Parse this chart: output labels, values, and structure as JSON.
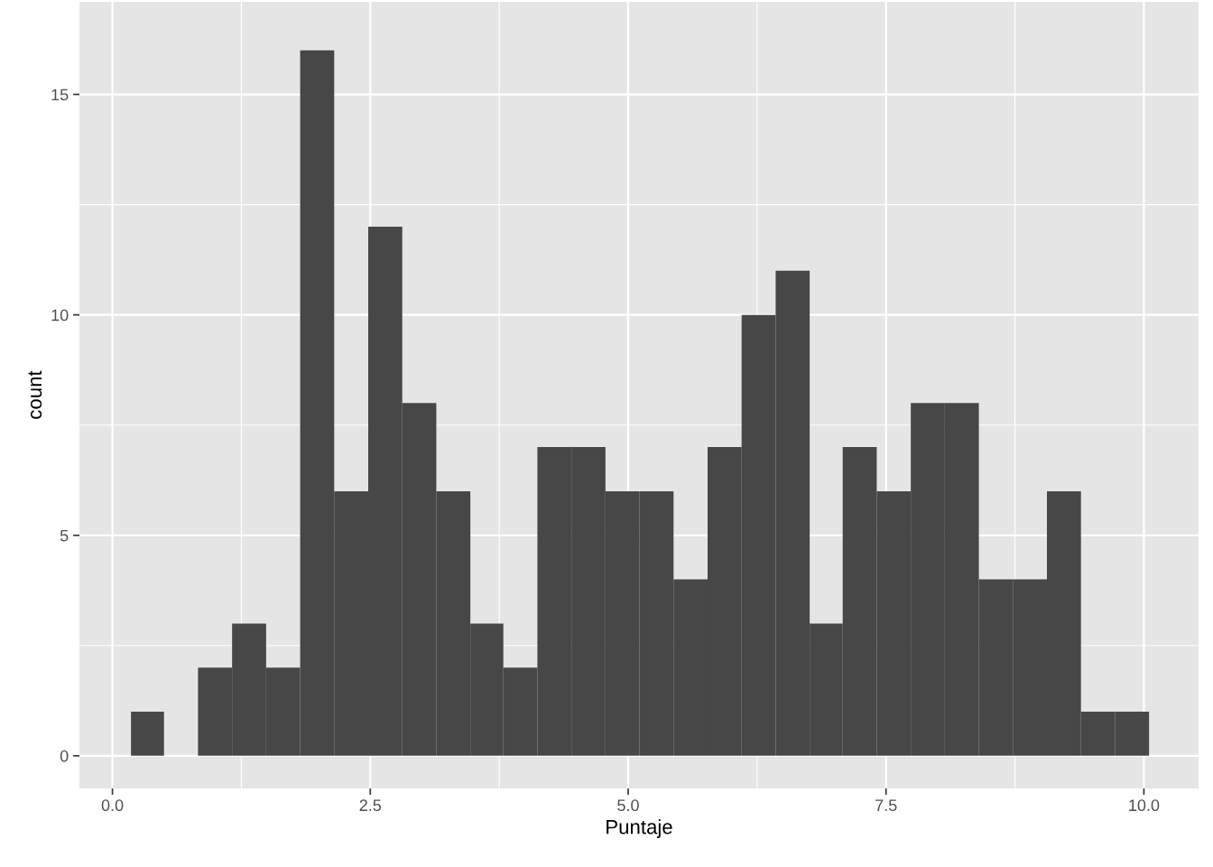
{
  "chart_data": {
    "type": "histogram",
    "xlabel": "Puntaje",
    "ylabel": "count",
    "color": "#474747",
    "bins": [
      0.18,
      0.5,
      0.83,
      1.16,
      1.49,
      1.82,
      2.15,
      2.48,
      2.81,
      3.14,
      3.47,
      3.79,
      4.12,
      4.45,
      4.78,
      5.11,
      5.44,
      5.77,
      6.1,
      6.43,
      6.76,
      7.08,
      7.41,
      7.74,
      8.07,
      8.4,
      8.73,
      9.06,
      9.39,
      9.72,
      10.05
    ],
    "values": [
      1,
      0,
      2,
      3,
      2,
      16,
      6,
      12,
      8,
      6,
      3,
      2,
      7,
      7,
      6,
      6,
      4,
      7,
      10,
      11,
      3,
      7,
      6,
      8,
      8,
      4,
      4,
      6,
      1,
      1
    ],
    "xlim": [
      -0.32,
      10.53
    ],
    "ylim": [
      -0.74,
      17.1
    ],
    "xticks": [
      {
        "value": 0,
        "label": "0.0"
      },
      {
        "value": 2.5,
        "label": "2.5"
      },
      {
        "value": 5,
        "label": "5.0"
      },
      {
        "value": 7.5,
        "label": "7.5"
      },
      {
        "value": 10,
        "label": "10.0"
      }
    ],
    "yticks": [
      0,
      5,
      10,
      15
    ],
    "grid": true
  }
}
